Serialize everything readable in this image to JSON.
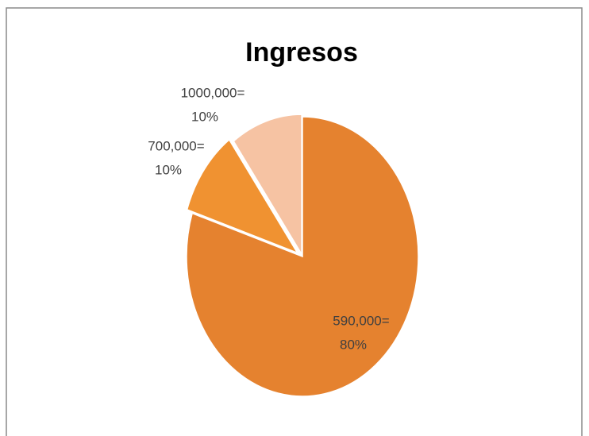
{
  "chart_data": {
    "type": "pie",
    "title": "Ingresos",
    "categories": [
      "590,000=",
      "700,000=",
      "1000,000="
    ],
    "values": [
      80,
      10,
      10
    ],
    "value_labels": [
      "80%",
      "10%",
      "10%"
    ],
    "colors": [
      "#e5822f",
      "#f09231",
      "#f6c3a3"
    ]
  }
}
